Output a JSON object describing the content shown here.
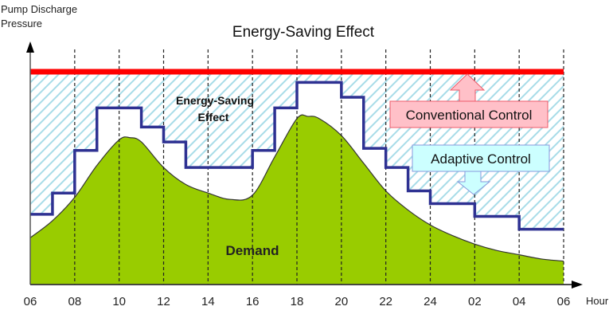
{
  "chart_data": {
    "type": "line",
    "title": "Energy-Saving Effect",
    "ylabel": "Pump Discharge Pressure",
    "xlabel": "Hour",
    "x_tick_labels": [
      "06",
      "08",
      "10",
      "12",
      "14",
      "16",
      "18",
      "20",
      "22",
      "24",
      "02",
      "04",
      "06"
    ],
    "x_unit": "hours elapsed from 06:00",
    "xlim": [
      0,
      24
    ],
    "ylim": [
      0,
      100
    ],
    "grid": "vertical dashed lines every 2 hours",
    "series": [
      {
        "name": "Conventional Control",
        "kind": "constant",
        "color": "#ff0000",
        "value": 100
      },
      {
        "name": "Adaptive Control",
        "kind": "step",
        "color": "#2e3192",
        "steps": [
          {
            "from": 0,
            "to": 1,
            "value": 33
          },
          {
            "from": 1,
            "to": 2,
            "value": 43
          },
          {
            "from": 2,
            "to": 3,
            "value": 63
          },
          {
            "from": 3,
            "to": 5,
            "value": 83
          },
          {
            "from": 5,
            "to": 6,
            "value": 74
          },
          {
            "from": 6,
            "to": 7,
            "value": 67
          },
          {
            "from": 7,
            "to": 10,
            "value": 55
          },
          {
            "from": 10,
            "to": 11,
            "value": 63
          },
          {
            "from": 11,
            "to": 12,
            "value": 83
          },
          {
            "from": 12,
            "to": 14,
            "value": 95
          },
          {
            "from": 14,
            "to": 15,
            "value": 88
          },
          {
            "from": 15,
            "to": 16,
            "value": 64
          },
          {
            "from": 16,
            "to": 17,
            "value": 55
          },
          {
            "from": 17,
            "to": 18,
            "value": 44
          },
          {
            "from": 18,
            "to": 20,
            "value": 38
          },
          {
            "from": 20,
            "to": 22,
            "value": 32
          },
          {
            "from": 22,
            "to": 24,
            "value": 26
          }
        ]
      },
      {
        "name": "Demand",
        "kind": "area",
        "color": "#99cc00",
        "x": [
          0,
          1,
          2,
          3,
          4,
          4.5,
          5,
          6,
          7,
          8,
          9,
          10,
          11,
          12,
          12.5,
          13,
          14,
          15,
          16,
          17,
          18,
          19,
          20,
          21,
          22,
          23,
          24
        ],
        "y": [
          22,
          30,
          41,
          56,
          68,
          69,
          67,
          55,
          47,
          43,
          40,
          42,
          60,
          78,
          79,
          78,
          70,
          57,
          44,
          35,
          28,
          23,
          19,
          16,
          14,
          12,
          11
        ]
      }
    ],
    "annotations": [
      {
        "text": "Energy-Saving Effect",
        "region": "hatched area between conventional and adaptive lines"
      },
      {
        "text": "Conventional Control",
        "arrow": "up",
        "color": "#ffc0c8"
      },
      {
        "text": "Adaptive Control",
        "arrow": "down",
        "color": "#ccffff"
      },
      {
        "text": "Demand",
        "region": "green area"
      }
    ]
  }
}
